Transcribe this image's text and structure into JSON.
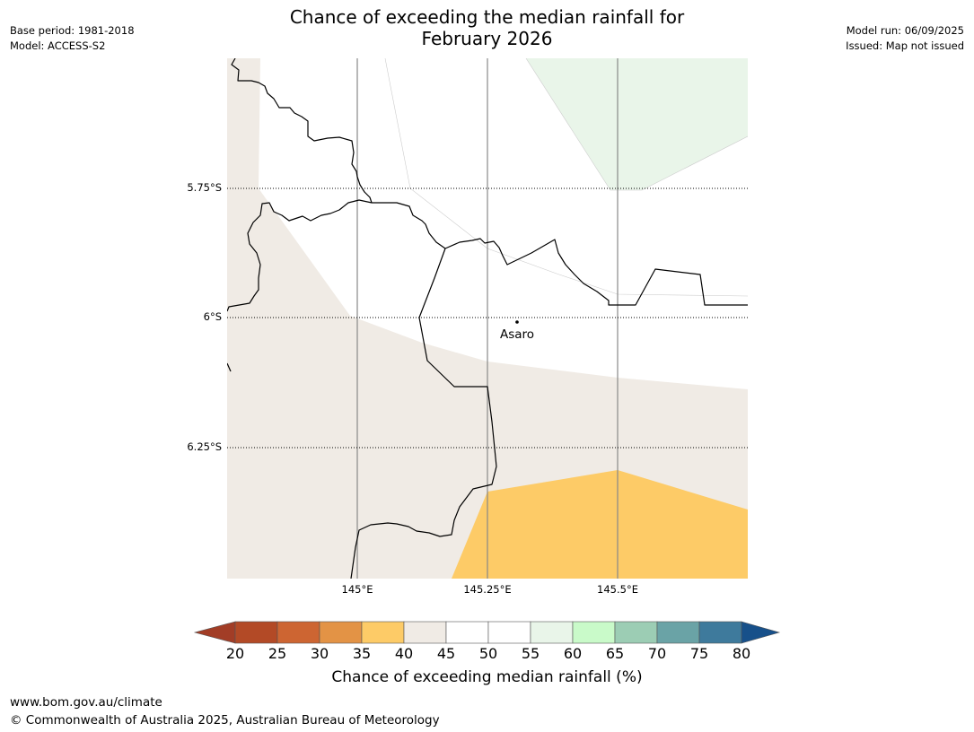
{
  "header": {
    "title_line1": "Chance of exceeding the median rainfall for",
    "title_line2": "February 2026",
    "base_period": "Base period: 1981-2018",
    "model": "Model: ACCESS-S2",
    "model_run": "Model run: 06/09/2025",
    "issued": "Issued: Map not issued"
  },
  "map": {
    "lat_ticks": [
      "5.75°S",
      "6°S",
      "6.25°S"
    ],
    "lon_ticks": [
      "145°E",
      "145.25°E",
      "145.5°E"
    ],
    "place_label": "Asaro",
    "region_colors": {
      "40_45": "#f0ebe5",
      "35_40": "#fdcb67",
      "55_60": "#e9f5e9",
      "50_55": "#ffffff"
    }
  },
  "colorbar": {
    "ticks": [
      "20",
      "25",
      "30",
      "35",
      "40",
      "45",
      "50",
      "55",
      "60",
      "65",
      "70",
      "75",
      "80"
    ],
    "colors": [
      "#a23d26",
      "#b34a26",
      "#cd6532",
      "#e39345",
      "#fdcb67",
      "#f0ebe5",
      "#ffffff",
      "#ffffff",
      "#e9f5e9",
      "#c9fac9",
      "#9ccdb4",
      "#6aa3a6",
      "#3e7a9c",
      "#17508a"
    ],
    "label": "Chance of exceeding median rainfall (%)"
  },
  "footer": {
    "website": "www.bom.gov.au/climate",
    "copyright": "© Commonwealth of Australia 2025, Australian Bureau of Meteorology"
  }
}
